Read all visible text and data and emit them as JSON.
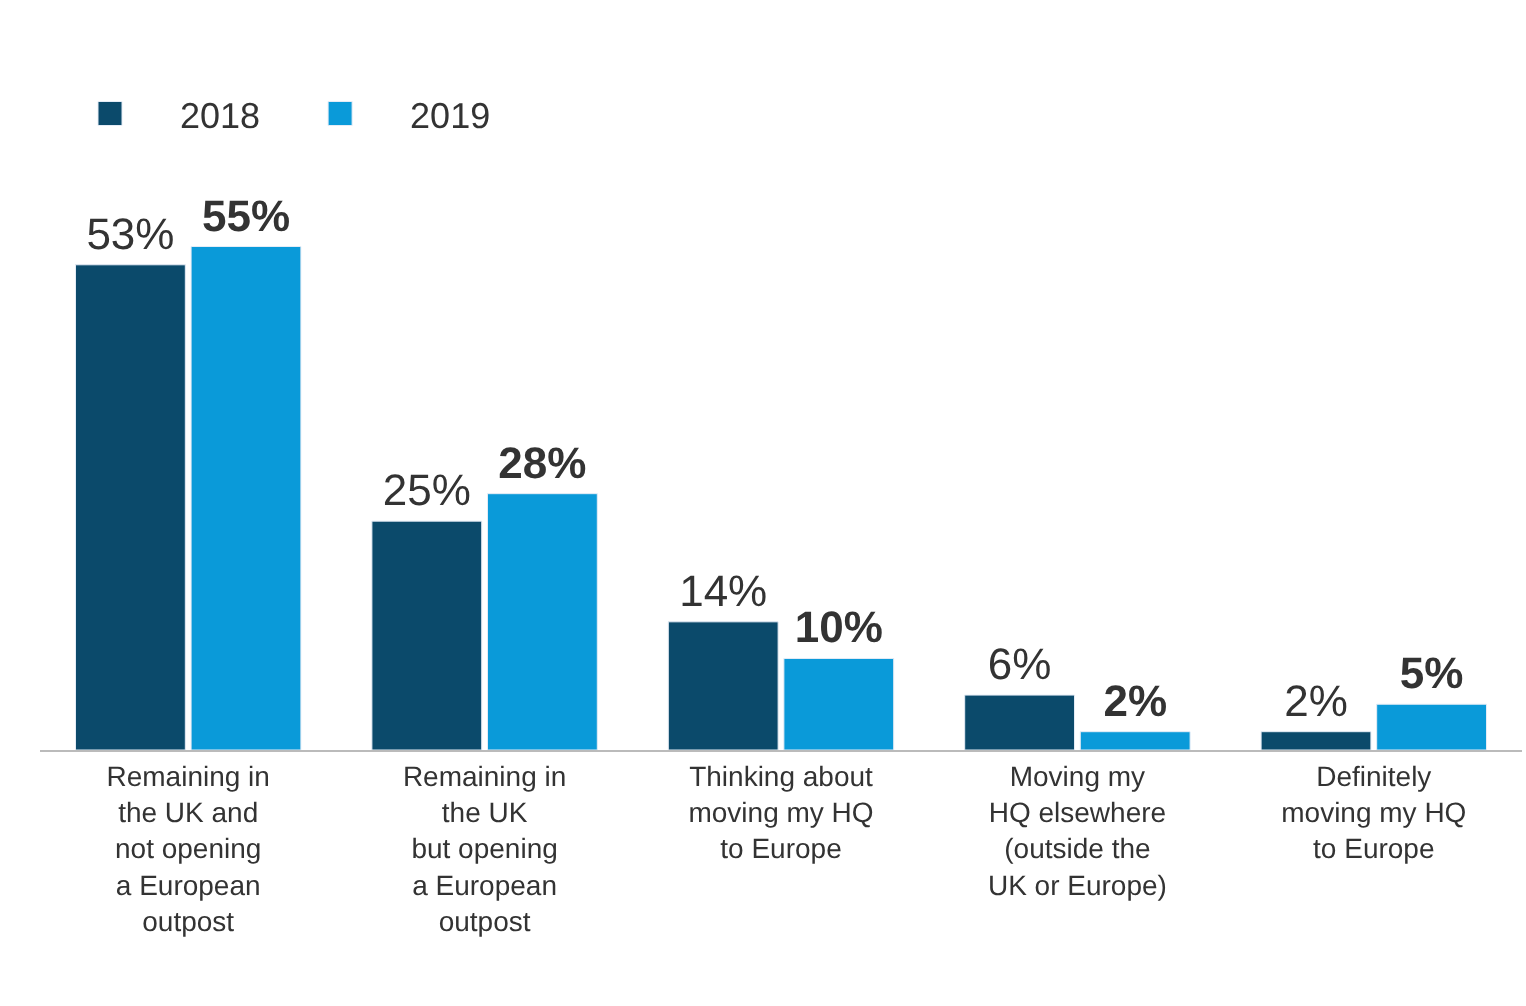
{
  "chart_data": {
    "type": "bar",
    "categories": [
      "Remaining in\nthe UK and\nnot opening\na European\noutpost",
      "Remaining in\nthe UK\nbut opening\na European\noutpost",
      "Thinking about\nmoving my HQ\nto Europe",
      "Moving my\nHQ elsewhere\n(outside the\nUK or Europe)",
      "Definitely\nmoving my HQ\nto Europe"
    ],
    "series": [
      {
        "name": "2018",
        "color": "#0b4a6b",
        "values": [
          53,
          25,
          14,
          6,
          2
        ],
        "value_labels": [
          "53%",
          "25%",
          "14%",
          "6%",
          "2%"
        ]
      },
      {
        "name": "2019",
        "color": "#0a9ad9",
        "values": [
          55,
          28,
          10,
          2,
          5
        ],
        "value_labels": [
          "55%",
          "28%",
          "10%",
          "2%",
          "5%"
        ]
      }
    ],
    "legend": "top left"
  }
}
